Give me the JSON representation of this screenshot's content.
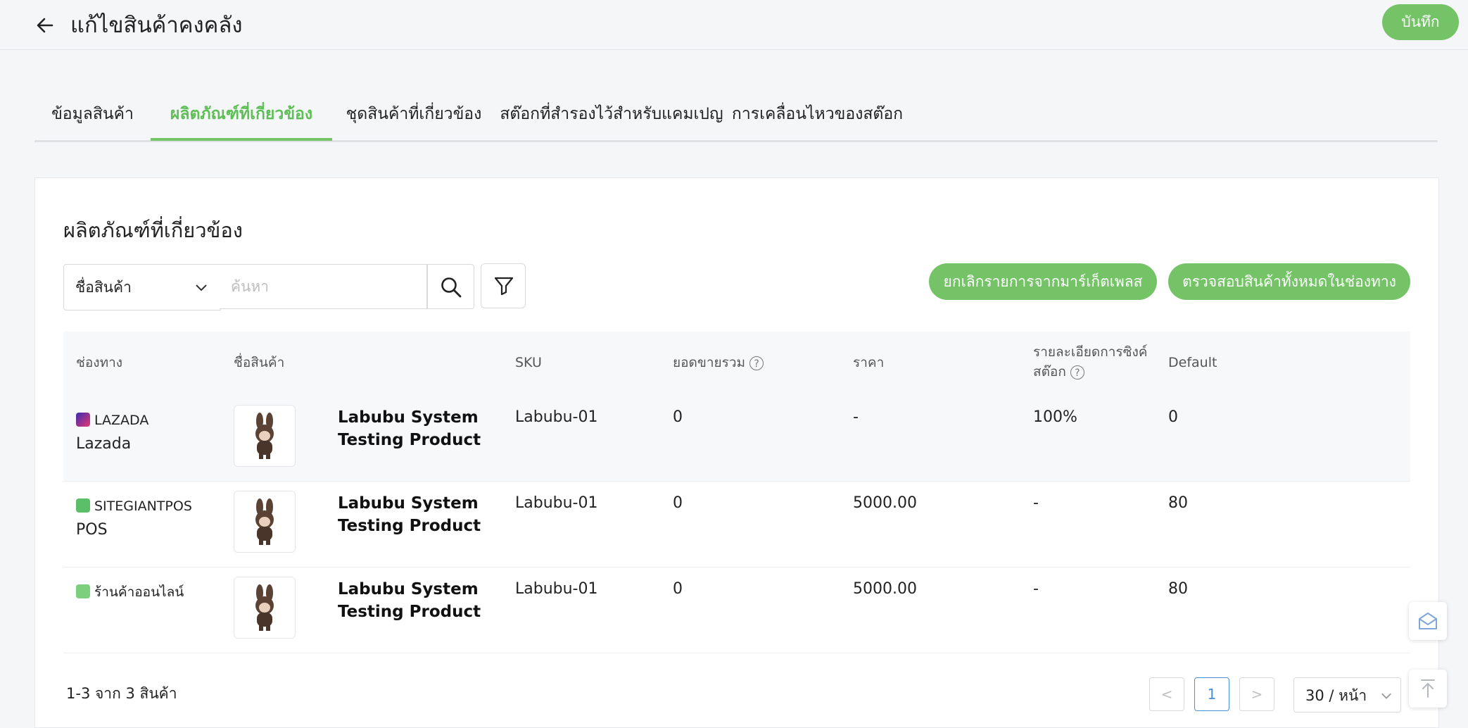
{
  "header": {
    "title": "แก้ไขสินค้าคงคลัง",
    "save_label": "บันทึก"
  },
  "tabs": [
    {
      "label": "ข้อมูลสินค้า",
      "active": false
    },
    {
      "label": "ผลิตภัณฑ์ที่เกี่ยวข้อง",
      "active": true
    },
    {
      "label": "ชุดสินค้าที่เกี่ยวข้อง",
      "active": false
    },
    {
      "label": "สต๊อกที่สำรองไว้สำหรับแคมเปญ",
      "active": false
    },
    {
      "label": "การเคลื่อนไหวของสต๊อก",
      "active": false
    }
  ],
  "section": {
    "title": "ผลิตภัณฑ์ที่เกี่ยวข้อง",
    "search_field": "ชื่อสินค้า",
    "search_placeholder": "ค้นหา",
    "btn_remove_marketplace": "ยกเลิกรายการจากมาร์เก็ตเพลส",
    "btn_check_all": "ตรวจสอบสินค้าทั้งหมดในช่องทาง"
  },
  "table": {
    "headers": {
      "channel": "ช่องทาง",
      "product_name": "ชื่อสินค้า",
      "sku": "SKU",
      "total_sales": "ยอดขายรวม",
      "price": "ราคา",
      "sync_line1": "รายละเอียดการซิงค์",
      "sync_line2": "สต๊อก",
      "default": "Default"
    },
    "rows": [
      {
        "channel": "LAZADA",
        "channel_sub": "Lazada",
        "name_line1": "Labubu System",
        "name_line2": "Testing Product",
        "sku": "Labubu-01",
        "total_sales": "0",
        "price": "-",
        "sync": "100%",
        "default": "0"
      },
      {
        "channel": "SITEGIANTPOS",
        "channel_sub": "POS",
        "name_line1": "Labubu System",
        "name_line2": "Testing Product",
        "sku": "Labubu-01",
        "total_sales": "0",
        "price": "5000.00",
        "sync": "-",
        "default": "80"
      },
      {
        "channel": "ร้านค้าออนไลน์",
        "channel_sub": "",
        "name_line1": "Labubu System",
        "name_line2": "Testing Product",
        "sku": "Labubu-01",
        "total_sales": "0",
        "price": "5000.00",
        "sync": "-",
        "default": "80"
      }
    ]
  },
  "footer": {
    "count": "1-3 จาก 3 สินค้า",
    "current_page": "1",
    "prev": "<",
    "next": ">",
    "page_size": "30 / หน้า"
  },
  "colors": {
    "accent": "#74c366",
    "active_tab": "#5fbf57",
    "page_active": "#4a90d9"
  },
  "icons": [
    "back-arrow-icon",
    "chevron-down-icon",
    "search-icon",
    "filter-icon",
    "help-icon",
    "lazada-icon",
    "pos-icon",
    "online-store-icon",
    "mail-icon",
    "arrow-up-icon"
  ]
}
